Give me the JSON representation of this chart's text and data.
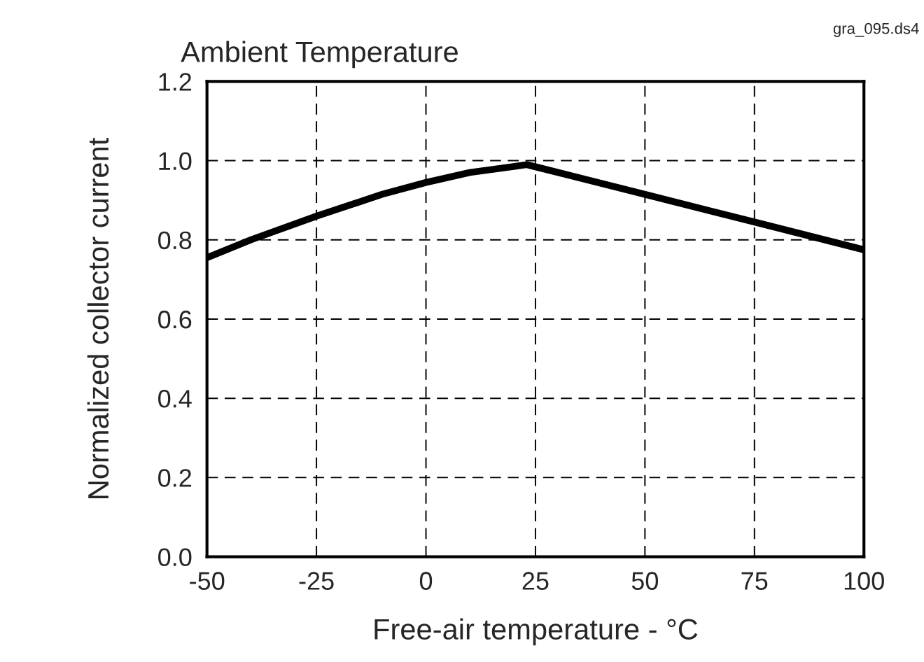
{
  "chart_data": {
    "type": "line",
    "title": "Ambient Temperature",
    "xlabel": "Free-air temperature - °C",
    "ylabel": "Normalized collector current",
    "annotations": [
      "gra_095.ds4"
    ],
    "x": [
      -50,
      -40,
      -25,
      -10,
      0,
      10,
      20,
      23,
      50,
      75,
      100
    ],
    "series": [
      {
        "color": "#000000",
        "values": [
          0.755,
          0.8,
          0.86,
          0.915,
          0.945,
          0.97,
          0.985,
          0.99,
          0.915,
          0.845,
          0.775
        ]
      }
    ],
    "xlim": [
      -50,
      100
    ],
    "xticks": [
      -50,
      -25,
      0,
      25,
      50,
      75,
      100
    ],
    "ylim": [
      0,
      1.2
    ],
    "yticks": [
      {
        "value": 0,
        "label": "0.0"
      },
      {
        "value": 0.2,
        "label": "0.2"
      },
      {
        "value": 0.4,
        "label": "0.4"
      },
      {
        "value": 0.6,
        "label": "0.6"
      },
      {
        "value": 0.8,
        "label": "0.8"
      },
      {
        "value": 1.0,
        "label": "1.0"
      },
      {
        "value": 1.2,
        "label": "1.2"
      }
    ],
    "grid": true,
    "line_style": "solid",
    "marker": "none",
    "legend": false
  }
}
